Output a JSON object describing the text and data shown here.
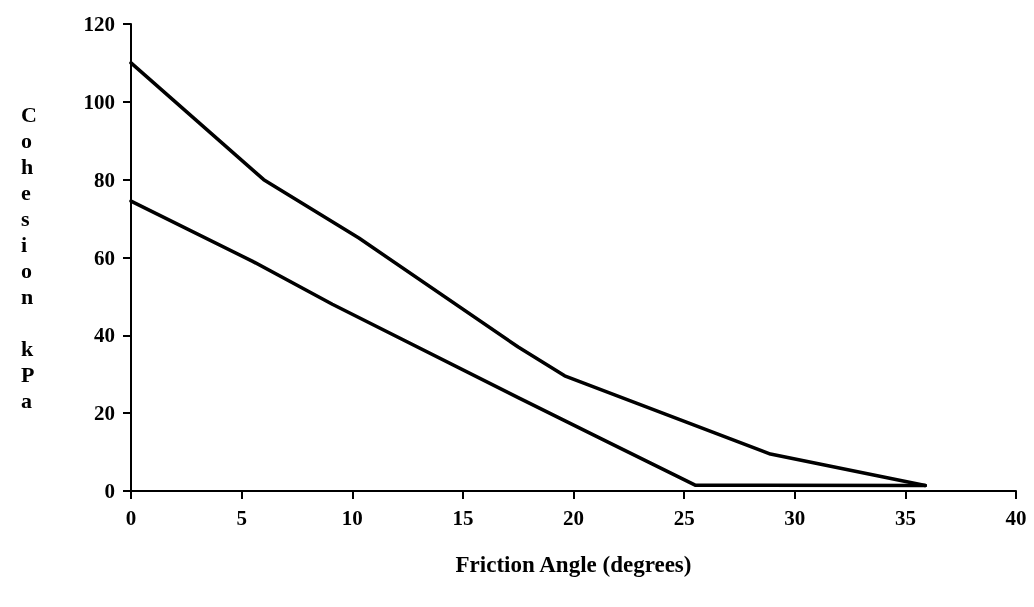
{
  "chart_data": {
    "type": "line",
    "xlabel": "Friction Angle (degrees)",
    "ylabel": "Cohesion kPa",
    "xlim": [
      0,
      40
    ],
    "xticks": [
      0,
      5,
      10,
      15,
      20,
      25,
      30,
      35,
      40
    ],
    "ylim": [
      0,
      120
    ],
    "yticks": [
      0,
      20,
      40,
      60,
      80,
      100,
      120
    ],
    "marker": "none",
    "line_style": "solid",
    "series": [
      {
        "color": "#000000",
        "x": [
          0,
          6,
          10.3,
          17.5,
          19.6,
          28.9,
          35.9
        ],
        "values": [
          110,
          80,
          65,
          37,
          29.6,
          9.5,
          1.4
        ]
      },
      {
        "color": "#000000",
        "x": [
          0,
          5.5,
          9.1,
          17.5,
          21.4,
          25.5,
          35.9
        ],
        "values": [
          74.5,
          59,
          48,
          24,
          13,
          1.5,
          1.4
        ]
      }
    ]
  }
}
